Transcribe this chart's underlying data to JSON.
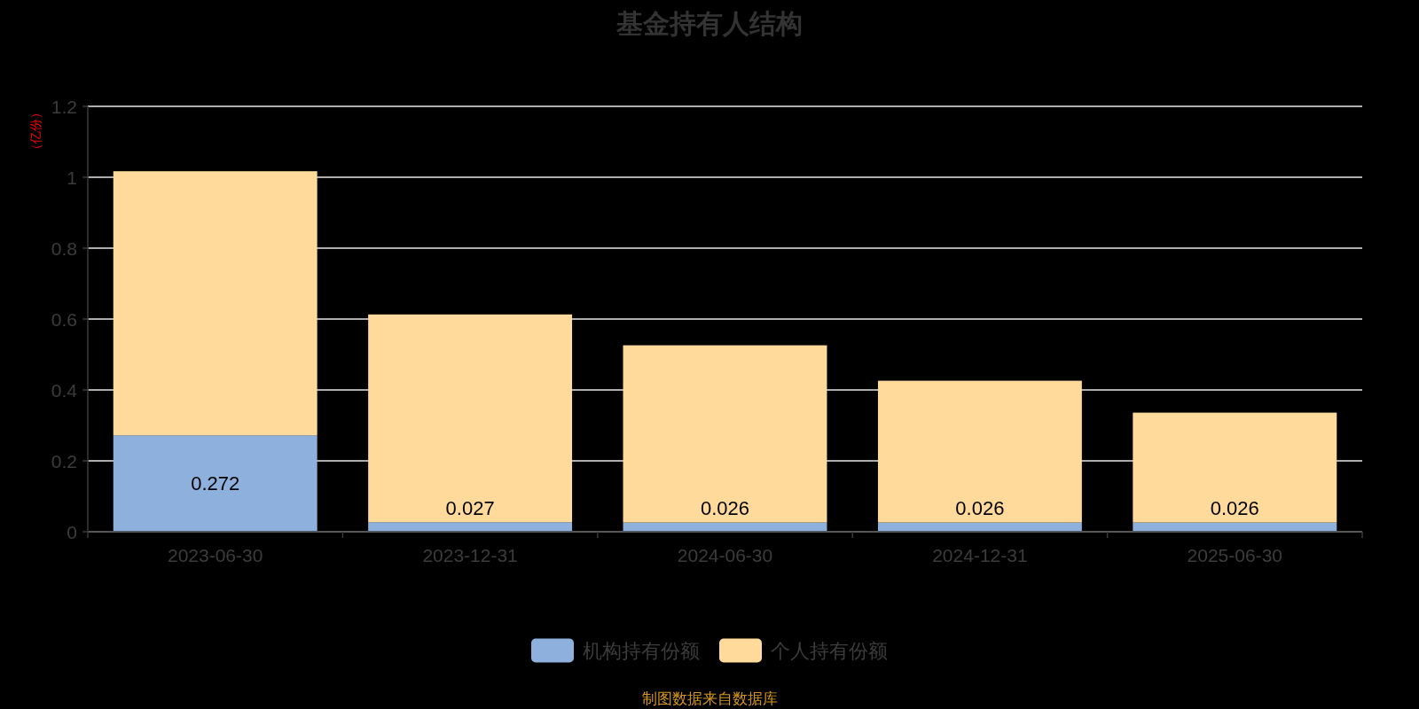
{
  "chart_data": {
    "type": "bar",
    "title": "基金持有人结构",
    "ylabel": "（亿份）",
    "categories": [
      "2023-06-30",
      "2023-12-31",
      "2024-06-30",
      "2024-12-31",
      "2025-06-30"
    ],
    "stacked": true,
    "series": [
      {
        "name": "机构持有份额",
        "color": "#8eb0dc",
        "values": [
          0.272,
          0.027,
          0.026,
          0.026,
          0.026
        ],
        "value_labels": [
          "0.272",
          "0.027",
          "0.026",
          "0.026",
          "0.026"
        ]
      },
      {
        "name": "个人持有份额",
        "color": "#ffda9a",
        "values": [
          0.745,
          0.586,
          0.5,
          0.4,
          0.31
        ]
      }
    ],
    "ylim": [
      0,
      1.2
    ],
    "yticks": [
      0,
      0.2,
      0.4,
      0.6,
      0.8,
      1,
      1.2
    ],
    "grid": "y",
    "legend": "bottom",
    "annotations": [
      "制图数据来自数据库"
    ]
  }
}
